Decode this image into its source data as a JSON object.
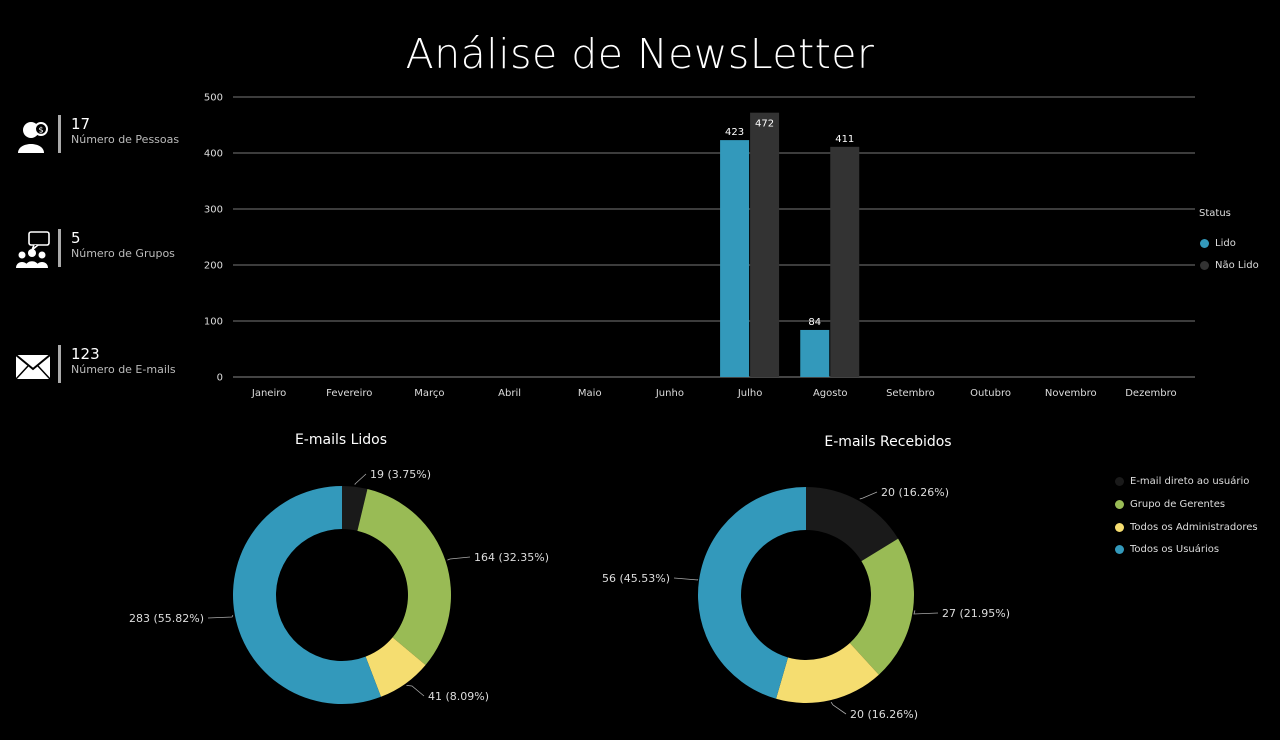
{
  "page": {
    "title": "Análise de NewsLetter"
  },
  "kpis": [
    {
      "value": "17",
      "label": "Número de Pessoas",
      "icon": "user-icon"
    },
    {
      "value": "5",
      "label": "Número de Grupos",
      "icon": "group-chat-icon"
    },
    {
      "value": "123",
      "label": "Número de E-mails",
      "icon": "envelope-icon"
    }
  ],
  "legend": {
    "title": "Status",
    "items": [
      {
        "label": "Lido",
        "color": "#3399bb"
      },
      {
        "label": "Não Lido",
        "color": "#333333"
      }
    ]
  },
  "donut_legend": {
    "items": [
      {
        "label": "E-mail direto ao usuário",
        "color": "#1a1a1a"
      },
      {
        "label": "Grupo de Gerentes",
        "color": "#99bb55"
      },
      {
        "label": "Todos os Administradores",
        "color": "#f5dd70"
      },
      {
        "label": "Todos os Usuários",
        "color": "#3399bb"
      }
    ]
  },
  "chart_data": [
    {
      "type": "bar",
      "categories": [
        "Janeiro",
        "Fevereiro",
        "Março",
        "Abril",
        "Maio",
        "Junho",
        "Julho",
        "Agosto",
        "Setembro",
        "Outubro",
        "Novembro",
        "Dezembro"
      ],
      "series": [
        {
          "name": "Lido",
          "values": [
            null,
            null,
            null,
            null,
            null,
            null,
            423,
            84,
            null,
            null,
            null,
            null
          ],
          "color": "#3399bb"
        },
        {
          "name": "Não Lido",
          "values": [
            null,
            null,
            null,
            null,
            null,
            null,
            472,
            411,
            null,
            null,
            null,
            null
          ],
          "color": "#333333"
        }
      ],
      "ylim": [
        0,
        500
      ],
      "yticks": [
        0,
        100,
        200,
        300,
        400,
        500
      ],
      "grid": true,
      "legend_position": "right"
    },
    {
      "type": "pie",
      "title": "E-mails Lidos",
      "slices": [
        {
          "name": "E-mail direto ao usuário",
          "value": 19,
          "label": "19 (3.75%)",
          "color": "#1a1a1a"
        },
        {
          "name": "Grupo de Gerentes",
          "value": 164,
          "label": "164 (32.35%)",
          "color": "#99bb55"
        },
        {
          "name": "Todos os Administradores",
          "value": 41,
          "label": "41 (8.09%)",
          "color": "#f5dd70"
        },
        {
          "name": "Todos os Usuários",
          "value": 283,
          "label": "283 (55.82%)",
          "color": "#3399bb"
        }
      ]
    },
    {
      "type": "pie",
      "title": "E-mails Recebidos",
      "slices": [
        {
          "name": "E-mail direto ao usuário",
          "value": 20,
          "label": "20 (16.26%)",
          "color": "#1a1a1a"
        },
        {
          "name": "Grupo de Gerentes",
          "value": 27,
          "label": "27 (21.95%)",
          "color": "#99bb55"
        },
        {
          "name": "Todos os Administradores",
          "value": 20,
          "label": "20 (16.26%)",
          "color": "#f5dd70"
        },
        {
          "name": "Todos os Usuários",
          "value": 56,
          "label": "56 (45.53%)",
          "color": "#3399bb"
        }
      ]
    }
  ]
}
